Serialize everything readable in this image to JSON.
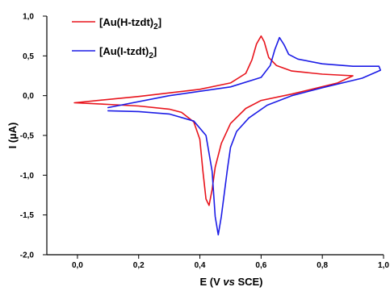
{
  "chart_data": {
    "type": "line",
    "xlabel": "E (V vs SCE)",
    "xlabel_parts": [
      "E (V ",
      "vs",
      " SCE)"
    ],
    "ylabel": "I (µA)",
    "xlim": [
      -0.1,
      1.0
    ],
    "ylim": [
      -2.0,
      1.0
    ],
    "x_ticks": [
      0.0,
      0.2,
      0.4,
      0.6,
      0.8,
      1.0
    ],
    "x_tick_labels": [
      "0,0",
      "0,2",
      "0,4",
      "0,6",
      "0,8",
      "1,0"
    ],
    "y_ticks": [
      1.0,
      0.5,
      0.0,
      -0.5,
      -1.0,
      -1.5,
      -2.0
    ],
    "y_tick_labels": [
      "1,0",
      "0,5",
      "0,0",
      "-0,5",
      "-1,0",
      "-1,5",
      "-2,0"
    ],
    "grid": false,
    "legend_position": "top-left",
    "series": [
      {
        "name": "[Au(H-tzdt)2]",
        "legend_main": "[Au(H-tzdt)",
        "legend_sub": "2",
        "legend_end": "]",
        "color": "#e8141c",
        "x": [
          -0.01,
          0.2,
          0.4,
          0.5,
          0.55,
          0.57,
          0.585,
          0.6,
          0.61,
          0.625,
          0.65,
          0.7,
          0.8,
          0.85,
          0.9,
          0.85,
          0.7,
          0.6,
          0.55,
          0.5,
          0.47,
          0.45,
          0.44,
          0.43,
          0.42,
          0.41,
          0.4,
          0.38,
          0.34,
          0.3,
          0.2,
          0.1,
          -0.01
        ],
        "y": [
          -0.09,
          -0.01,
          0.08,
          0.16,
          0.28,
          0.45,
          0.65,
          0.75,
          0.68,
          0.48,
          0.38,
          0.31,
          0.27,
          0.26,
          0.25,
          0.16,
          0.02,
          -0.06,
          -0.16,
          -0.35,
          -0.6,
          -0.9,
          -1.18,
          -1.38,
          -1.3,
          -0.95,
          -0.55,
          -0.33,
          -0.21,
          -0.17,
          -0.13,
          -0.11,
          -0.09
        ]
      },
      {
        "name": "[Au(I-tzdt)2]",
        "legend_main": "[Au(I-tzdt)",
        "legend_sub": "2",
        "legend_end": "]",
        "color": "#1c1ce6",
        "x": [
          0.1,
          0.3,
          0.5,
          0.6,
          0.63,
          0.645,
          0.66,
          0.675,
          0.69,
          0.72,
          0.8,
          0.9,
          0.95,
          0.985,
          0.99,
          0.93,
          0.8,
          0.7,
          0.62,
          0.56,
          0.52,
          0.5,
          0.49,
          0.48,
          0.47,
          0.46,
          0.45,
          0.44,
          0.42,
          0.38,
          0.3,
          0.2,
          0.1
        ],
        "y": [
          -0.15,
          0.0,
          0.11,
          0.23,
          0.38,
          0.58,
          0.73,
          0.64,
          0.52,
          0.46,
          0.4,
          0.37,
          0.37,
          0.37,
          0.32,
          0.22,
          0.1,
          0.0,
          -0.12,
          -0.28,
          -0.45,
          -0.65,
          -0.92,
          -1.22,
          -1.52,
          -1.75,
          -1.52,
          -0.95,
          -0.5,
          -0.32,
          -0.23,
          -0.2,
          -0.19
        ]
      }
    ]
  }
}
